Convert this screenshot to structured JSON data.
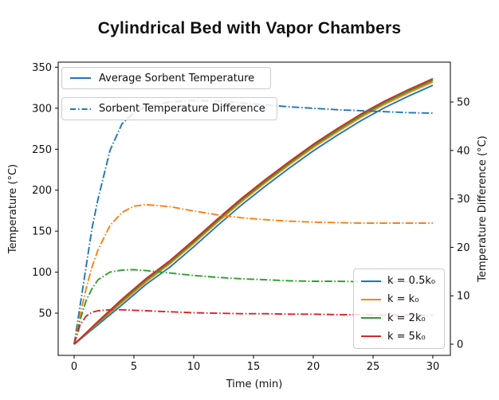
{
  "title": "Cylindrical Bed with Vapor Chambers",
  "chart_data": {
    "type": "line",
    "title": "Cylindrical Bed with Vapor Chambers",
    "xlabel": "Time (min)",
    "x_ticks": [
      0,
      5,
      10,
      15,
      20,
      25,
      30
    ],
    "xlim": [
      -1.35,
      31.5
    ],
    "grid": false,
    "left_axis": {
      "label": "Temperature (°C)",
      "ticks": [
        50,
        100,
        150,
        200,
        250,
        300,
        350
      ],
      "range": [
        -2,
        356
      ]
    },
    "right_axis": {
      "label": "Temperature Difference (°C)",
      "ticks": [
        0,
        10,
        20,
        30,
        40,
        50
      ],
      "range": [
        -2.5,
        58
      ]
    },
    "palette": {
      "blue": "#1f77b4",
      "orange": "#ff7f0e",
      "green": "#2ca02c",
      "red": "#d62728"
    },
    "legends": {
      "style": [
        {
          "label": "Average Sorbent Temperature",
          "style": "solid",
          "color": "#1f77b4"
        },
        {
          "label": "Sorbent Temperature Difference",
          "style": "dashdot",
          "color": "#1f77b4"
        }
      ],
      "k": [
        {
          "label": "k = 0.5k₀",
          "color": "#1f77b4"
        },
        {
          "label": "k = k₀",
          "color": "#ff7f0e"
        },
        {
          "label": "k = 2k₀",
          "color": "#2ca02c"
        },
        {
          "label": "k = 5k₀",
          "color": "#d62728"
        }
      ],
      "positions": {
        "style": "upper left",
        "k": "lower right"
      }
    },
    "series": [
      {
        "name": "avg-temp-k-0.5k0",
        "kind": "Average Sorbent Temperature",
        "k": "0.5k₀",
        "style": "solid",
        "axis": "left",
        "color": "#1f77b4",
        "x": [
          0,
          2,
          4,
          6,
          8,
          10,
          12,
          14,
          16,
          18,
          20,
          22,
          24,
          26,
          28,
          30
        ],
        "y": [
          12,
          36,
          60,
          85,
          106,
          131,
          157,
          182,
          205,
          227,
          248,
          267,
          285,
          301,
          315,
          328
        ]
      },
      {
        "name": "avg-temp-k-1k0",
        "kind": "Average Sorbent Temperature",
        "k": "k₀",
        "style": "solid",
        "axis": "left",
        "color": "#ff7f0e",
        "x": [
          0,
          2,
          4,
          6,
          8,
          10,
          12,
          14,
          16,
          18,
          20,
          22,
          24,
          26,
          28,
          30
        ],
        "y": [
          12,
          38,
          63,
          88,
          110,
          135,
          161,
          186,
          209,
          231,
          252,
          271,
          289,
          305,
          319,
          332
        ]
      },
      {
        "name": "avg-temp-k-2k0",
        "kind": "Average Sorbent Temperature",
        "k": "2k₀",
        "style": "solid",
        "axis": "left",
        "color": "#2ca02c",
        "x": [
          0,
          2,
          4,
          6,
          8,
          10,
          12,
          14,
          16,
          18,
          20,
          22,
          24,
          26,
          28,
          30
        ],
        "y": [
          12,
          39,
          65,
          90,
          112,
          137,
          163,
          188,
          211,
          233,
          254,
          273,
          291,
          307,
          321,
          334
        ]
      },
      {
        "name": "avg-temp-k-5k0",
        "kind": "Average Sorbent Temperature",
        "k": "5k₀",
        "style": "solid",
        "axis": "left",
        "color": "#d62728",
        "x": [
          0,
          2,
          4,
          6,
          8,
          10,
          12,
          14,
          16,
          18,
          20,
          22,
          24,
          26,
          28,
          30
        ],
        "y": [
          12,
          40,
          67,
          92,
          114,
          139,
          165,
          190,
          213,
          235,
          256,
          275,
          293,
          309,
          323,
          336
        ]
      },
      {
        "name": "temp-diff-k-0.5k0",
        "kind": "Sorbent Temperature Difference",
        "k": "0.5k₀",
        "style": "dashdot",
        "axis": "right",
        "color": "#1f77b4",
        "x": [
          0,
          0.5,
          1,
          1.5,
          2,
          3,
          4,
          5,
          6,
          8,
          10,
          12,
          14,
          16,
          18,
          20,
          22,
          24,
          26,
          28,
          30
        ],
        "y": [
          0,
          8,
          16,
          24,
          30,
          40,
          45.5,
          47.8,
          49,
          50,
          50.3,
          50.2,
          49.8,
          49.4,
          49,
          48.7,
          48.4,
          48.2,
          48,
          47.8,
          47.7
        ]
      },
      {
        "name": "temp-diff-k-1k0",
        "kind": "Sorbent Temperature Difference",
        "k": "k₀",
        "style": "dashdot",
        "axis": "right",
        "color": "#ff7f0e",
        "x": [
          0,
          0.5,
          1,
          1.5,
          2,
          3,
          4,
          5,
          6,
          8,
          10,
          12,
          14,
          16,
          18,
          20,
          22,
          24,
          26,
          28,
          30
        ],
        "y": [
          0,
          6,
          11.5,
          16,
          19.5,
          24.5,
          27.2,
          28.5,
          28.8,
          28.4,
          27.5,
          26.7,
          26.1,
          25.7,
          25.4,
          25.2,
          25.1,
          25,
          25,
          25,
          25
        ]
      },
      {
        "name": "temp-diff-k-2k0",
        "kind": "Sorbent Temperature Difference",
        "k": "2k₀",
        "style": "dashdot",
        "axis": "right",
        "color": "#2ca02c",
        "x": [
          0,
          0.5,
          1,
          1.5,
          2,
          3,
          4,
          5,
          6,
          8,
          10,
          12,
          14,
          16,
          18,
          20,
          22,
          24,
          26,
          28,
          30
        ],
        "y": [
          0,
          5,
          9,
          11.5,
          13.3,
          14.9,
          15.3,
          15.4,
          15.2,
          14.7,
          14.2,
          13.8,
          13.5,
          13.3,
          13.1,
          13,
          13,
          12.9,
          12.9,
          12.9,
          12.9
        ]
      },
      {
        "name": "temp-diff-k-5k0",
        "kind": "Sorbent Temperature Difference",
        "k": "5k₀",
        "style": "dashdot",
        "axis": "right",
        "color": "#d62728",
        "x": [
          0,
          0.5,
          1,
          1.5,
          2,
          3,
          4,
          5,
          6,
          8,
          10,
          12,
          14,
          16,
          18,
          20,
          22,
          24,
          26,
          28,
          30
        ],
        "y": [
          0,
          4,
          5.8,
          6.6,
          6.9,
          7.1,
          7.1,
          7,
          6.9,
          6.7,
          6.5,
          6.4,
          6.3,
          6.3,
          6.2,
          6.2,
          6.1,
          6.1,
          6,
          6,
          6
        ]
      }
    ]
  }
}
